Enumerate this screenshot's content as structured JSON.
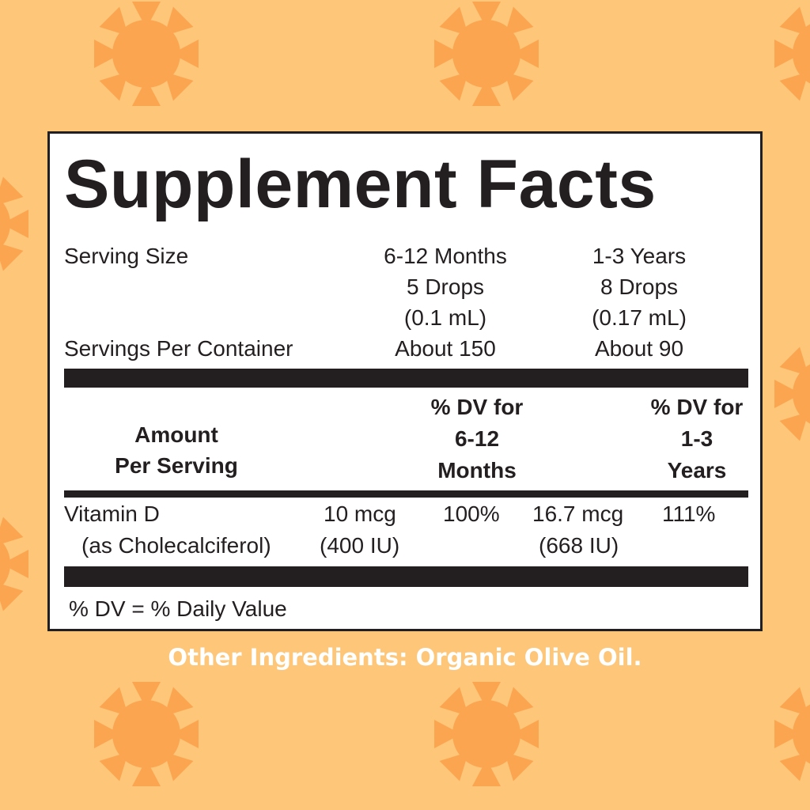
{
  "colors": {
    "background": "#fdc678",
    "sun": "#fca550",
    "ink": "#231f20"
  },
  "title": "Supplement Facts",
  "serving": {
    "serving_size_label": "Serving Size",
    "servings_per_container_label": "Servings Per Container",
    "columns": [
      {
        "age": "6-12 Months",
        "drops": "5 Drops",
        "volume": "(0.1 mL)",
        "servings": "About 150"
      },
      {
        "age": "1-3 Years",
        "drops": "8 Drops",
        "volume": "(0.17 mL)",
        "servings": "About 90"
      }
    ]
  },
  "header": {
    "amount_line1": "Amount",
    "amount_line2": "Per Serving",
    "dv1": [
      "% DV for",
      "6-12",
      "Months"
    ],
    "dv2": [
      "% DV for",
      "1-3",
      "Years"
    ]
  },
  "nutrient": {
    "name": "Vitamin D",
    "form": "(as Cholecalciferol)",
    "amount1": "10 mcg",
    "amount1_iu": "(400 IU)",
    "dv1": "100%",
    "amount2": "16.7 mcg",
    "amount2_iu": "(668 IU)",
    "dv2": "111%"
  },
  "footnote": "% DV = % Daily Value",
  "other_ingredients": "Other Ingredients: Organic Olive Oil."
}
